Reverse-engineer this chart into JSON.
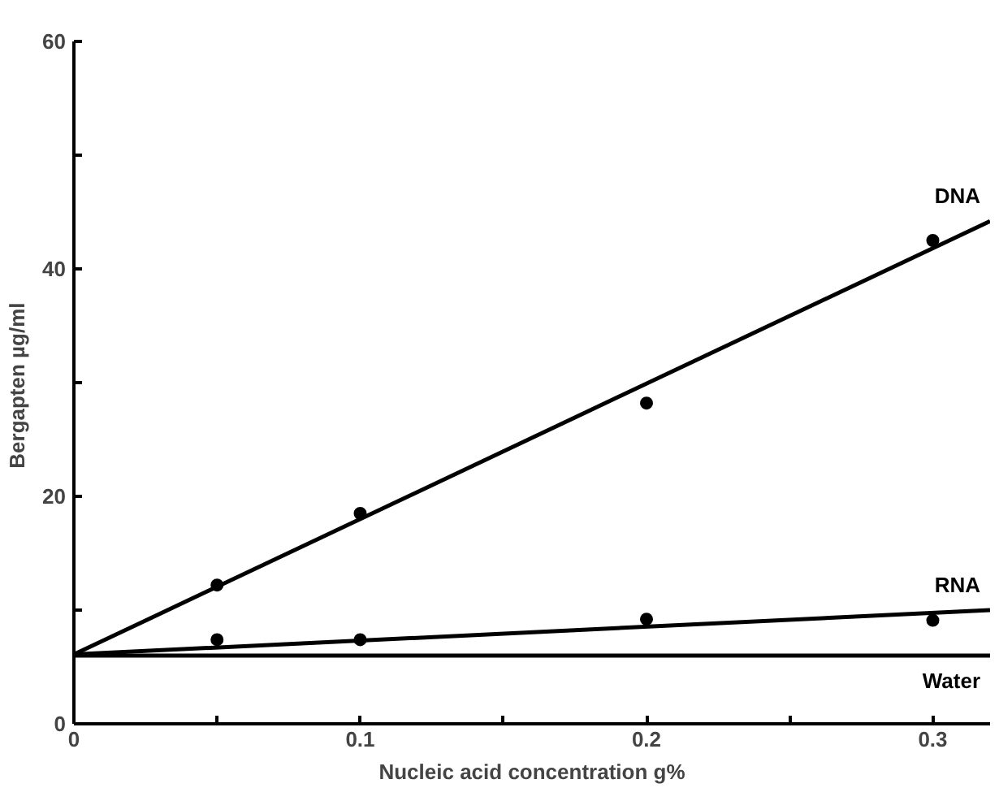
{
  "chart_data": {
    "type": "scatter",
    "xlabel": "Nucleic acid concentration g%",
    "ylabel": "Bergapten  µg/ml",
    "xlim": [
      0,
      0.32
    ],
    "ylim": [
      0,
      60
    ],
    "xticks": [
      0,
      {
        "value": 0.05,
        "label": null
      },
      0.1,
      {
        "value": 0.15,
        "label": null
      },
      0.2,
      {
        "value": 0.25,
        "label": null
      },
      0.3
    ],
    "yticks": [
      0,
      {
        "value": 10,
        "label": null
      },
      20,
      {
        "value": 30,
        "label": null
      },
      40,
      {
        "value": 50,
        "label": null
      },
      60
    ],
    "grid": false,
    "marker": "circle",
    "series": [
      {
        "color": "#000000",
        "x": [
          0.05,
          0.1,
          0.2,
          0.3
        ],
        "values": [
          12.2,
          18.5,
          28.2,
          42.5
        ]
      },
      {
        "color": "#000000",
        "x": [
          0.05,
          0.1,
          0.2,
          0.3
        ],
        "values": [
          7.4,
          7.4,
          9.2,
          9.1
        ]
      },
      {
        "type": "line",
        "name": "DNA",
        "color": "#000000",
        "marker": "none",
        "x": [
          0,
          0.32
        ],
        "values": [
          6.1,
          44.2
        ]
      },
      {
        "type": "line",
        "name": "RNA",
        "color": "#000000",
        "marker": "none",
        "x": [
          0,
          0.32
        ],
        "values": [
          6.1,
          10.0
        ]
      },
      {
        "type": "line",
        "name": "Water",
        "color": "#000000",
        "marker": "none",
        "x": [
          0,
          0.32
        ],
        "values": [
          6.0,
          6.0
        ]
      }
    ]
  }
}
